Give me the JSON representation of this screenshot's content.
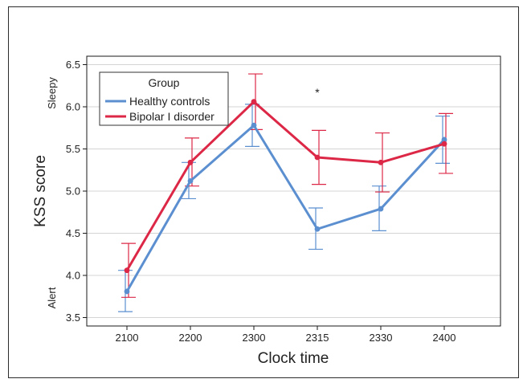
{
  "chart_data": {
    "type": "line",
    "xlabel": "Clock time",
    "ylabel": "KSS score",
    "categories": [
      "2100",
      "2200",
      "2300",
      "2315",
      "2330",
      "2400"
    ],
    "ylim": [
      3.4,
      6.6
    ],
    "yticks": [
      3.5,
      4.0,
      4.5,
      5.0,
      5.5,
      6.0,
      6.5
    ],
    "ytick_labels": [
      "3.5",
      "4.0",
      "4.5",
      "5.0",
      "5.5",
      "6.0",
      "6.5"
    ],
    "y_anchor_labels": {
      "low": "Alert",
      "high": "Sleepy"
    },
    "grid": "horizontal",
    "legend": {
      "title": "Group",
      "placement": "top-left",
      "entries": [
        "Healthy controls",
        "Bipolar I disorder"
      ]
    },
    "series": [
      {
        "name": "Healthy controls",
        "color": "#5b8fd0",
        "values": [
          3.81,
          5.12,
          5.78,
          4.55,
          4.79,
          5.61
        ],
        "err_low": [
          3.57,
          4.91,
          5.53,
          4.31,
          4.53,
          5.33
        ],
        "err_high": [
          4.06,
          5.34,
          6.03,
          4.8,
          5.06,
          5.89
        ]
      },
      {
        "name": "Bipolar I disorder",
        "color": "#dc2846",
        "values": [
          4.06,
          5.34,
          6.06,
          5.4,
          5.34,
          5.56
        ],
        "err_low": [
          3.74,
          5.06,
          5.73,
          5.08,
          4.99,
          5.21
        ],
        "err_high": [
          4.38,
          5.63,
          6.39,
          5.72,
          5.69,
          5.92
        ]
      }
    ],
    "annotations": [
      {
        "text": "*",
        "category": "2315",
        "y": 6.17
      }
    ]
  }
}
